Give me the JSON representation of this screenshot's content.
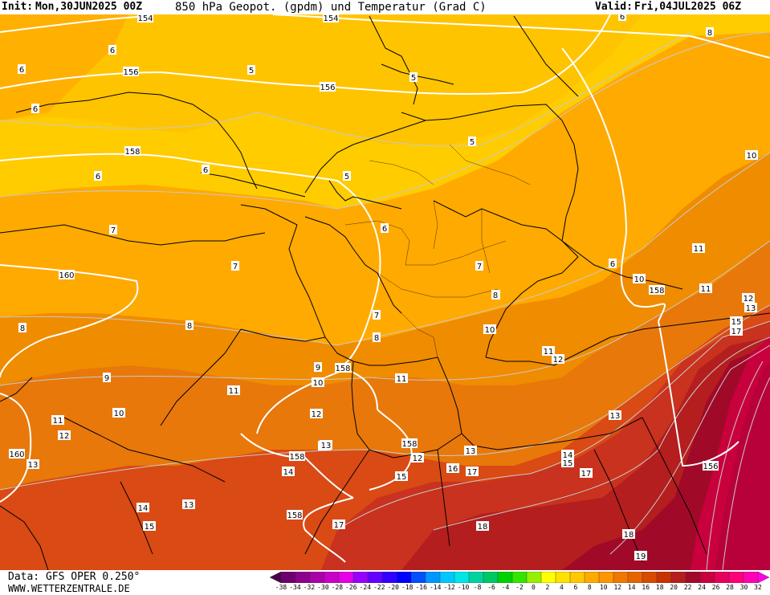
{
  "header": {
    "init_label": "Init:",
    "init_value": "Mon,30JUN2025 00Z",
    "title": "850 hPa Geopot. (gpdm) und Temperatur (Grad C)",
    "valid_label": "Valid:",
    "valid_value": "Fri,04JUL2025 06Z"
  },
  "footer": {
    "data_source": "Data: GFS OPER 0.250°",
    "website": "WWW.WETTERZENTRALE.DE"
  },
  "legend": {
    "ticks": [
      "-38",
      "-34",
      "-32",
      "-30",
      "-28",
      "-26",
      "-24",
      "-22",
      "-20",
      "-18",
      "-16",
      "-14",
      "-12",
      "-10",
      "-8",
      "-6",
      "-4",
      "-2",
      "0",
      "2",
      "4",
      "6",
      "8",
      "10",
      "12",
      "14",
      "16",
      "18",
      "20",
      "22",
      "24",
      "26",
      "28",
      "30",
      "32"
    ],
    "colors": [
      "#4b004b",
      "#6e006e",
      "#8c008c",
      "#aa00aa",
      "#c800c8",
      "#e600e6",
      "#9600ff",
      "#6400ff",
      "#3200ff",
      "#0000ff",
      "#0050ff",
      "#0096ff",
      "#00c8ff",
      "#00e6e6",
      "#00d2a0",
      "#00c864",
      "#00d200",
      "#32e600",
      "#96f000",
      "#ffff00",
      "#ffe100",
      "#ffc800",
      "#ffaa00",
      "#ff9600",
      "#f07800",
      "#e66400",
      "#d74b00",
      "#c83200",
      "#b41e1e",
      "#a00a28",
      "#c8003c",
      "#e6005a",
      "#ff0078",
      "#ff00b4",
      "#ff00e6"
    ]
  },
  "map": {
    "geopotential_labels": [
      {
        "text": "154"
      },
      {
        "text": "154"
      },
      {
        "text": "156"
      },
      {
        "text": "156"
      },
      {
        "text": "158"
      },
      {
        "text": "160"
      },
      {
        "text": "158"
      },
      {
        "text": "158"
      },
      {
        "text": "160"
      },
      {
        "text": "158"
      },
      {
        "text": "158"
      },
      {
        "text": "158"
      },
      {
        "text": "156"
      }
    ],
    "temperature_labels": [
      {
        "text": "6"
      },
      {
        "text": "6"
      },
      {
        "text": "6"
      },
      {
        "text": "6"
      },
      {
        "text": "6"
      },
      {
        "text": "5"
      },
      {
        "text": "5"
      },
      {
        "text": "5"
      },
      {
        "text": "5"
      },
      {
        "text": "6"
      },
      {
        "text": "7"
      },
      {
        "text": "7"
      },
      {
        "text": "6"
      },
      {
        "text": "7"
      },
      {
        "text": "7"
      },
      {
        "text": "8"
      },
      {
        "text": "8"
      },
      {
        "text": "8"
      },
      {
        "text": "8"
      },
      {
        "text": "8"
      },
      {
        "text": "9"
      },
      {
        "text": "10"
      },
      {
        "text": "10"
      },
      {
        "text": "9"
      },
      {
        "text": "10"
      },
      {
        "text": "11"
      },
      {
        "text": "11"
      },
      {
        "text": "11"
      },
      {
        "text": "12"
      },
      {
        "text": "13"
      },
      {
        "text": "14"
      },
      {
        "text": "13"
      },
      {
        "text": "14"
      },
      {
        "text": "15"
      },
      {
        "text": "12"
      },
      {
        "text": "13"
      },
      {
        "text": "13"
      },
      {
        "text": "15"
      },
      {
        "text": "15"
      },
      {
        "text": "12"
      },
      {
        "text": "16"
      },
      {
        "text": "17"
      },
      {
        "text": "13"
      },
      {
        "text": "14"
      },
      {
        "text": "15"
      },
      {
        "text": "17"
      },
      {
        "text": "17"
      },
      {
        "text": "18"
      },
      {
        "text": "18"
      },
      {
        "text": "19"
      },
      {
        "text": "8"
      },
      {
        "text": "10"
      },
      {
        "text": "11"
      },
      {
        "text": "10"
      },
      {
        "text": "11"
      },
      {
        "text": "12"
      },
      {
        "text": "13"
      },
      {
        "text": "15"
      },
      {
        "text": "17"
      },
      {
        "text": "11"
      },
      {
        "text": "12"
      },
      {
        "text": "13"
      },
      {
        "text": "6"
      },
      {
        "text": "8"
      }
    ]
  }
}
